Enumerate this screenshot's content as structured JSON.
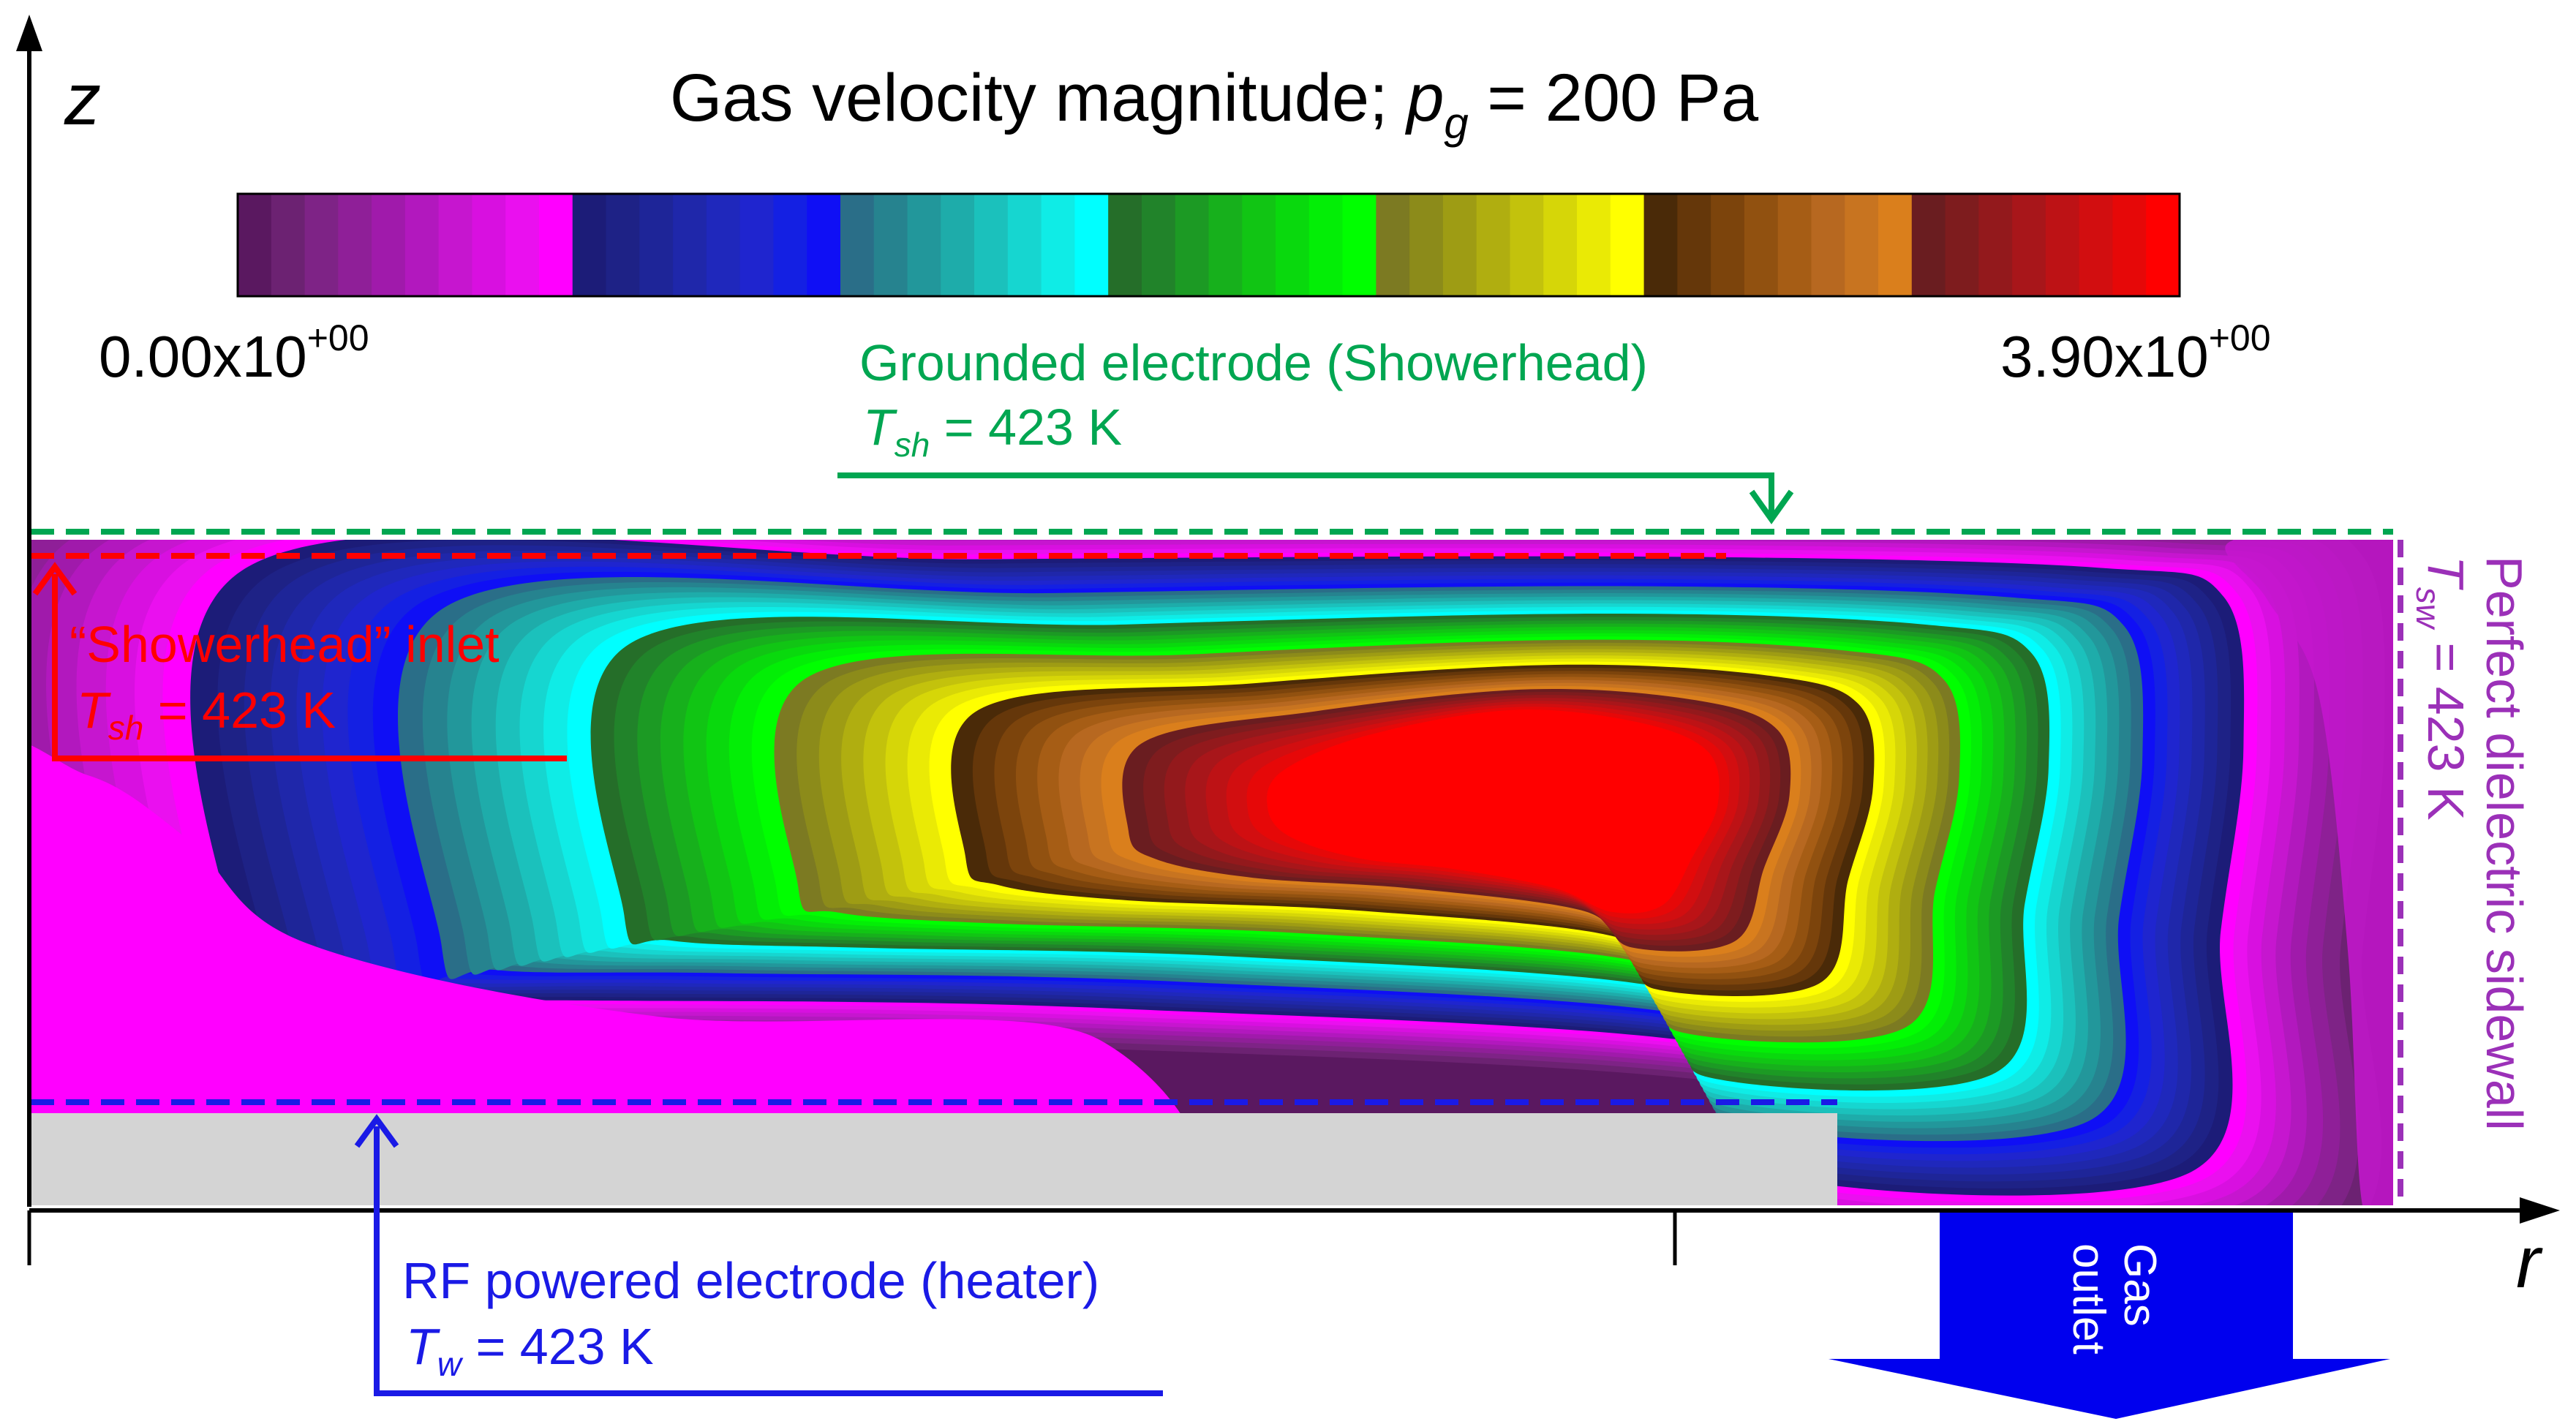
{
  "title": {
    "text": "Gas velocity magnitude; ",
    "sym": "p",
    "sub": "g",
    "rest": " = 200 Pa"
  },
  "colorbar": {
    "min_label": {
      "base": "0.00x10",
      "exp": "+00"
    },
    "max_label": {
      "base": "3.90x10",
      "exp": "+00"
    },
    "min": 0.0,
    "max": 3.9,
    "colors": [
      "#5a1860",
      "#6c2272",
      "#7e2386",
      "#8f1f98",
      "#a01aab",
      "#b218be",
      "#c616cf",
      "#d810e0",
      "#ea10ef",
      "#ff00ff",
      "#1c1c78",
      "#1e2286",
      "#1e2598",
      "#1f27aa",
      "#1f28bc",
      "#1f25cf",
      "#1420e3",
      "#0f0ff5",
      "#2a6e88",
      "#26838f",
      "#22979b",
      "#1eacaa",
      "#1bc1bc",
      "#16d6d0",
      "#0fece6",
      "#00ffff",
      "#256e29",
      "#21832a",
      "#1c9a24",
      "#17b01c",
      "#11c514",
      "#09d90d",
      "#03ee06",
      "#00ff00",
      "#7c7a22",
      "#8c8b1a",
      "#9e9c14",
      "#b0ae10",
      "#c3c20c",
      "#d6d608",
      "#eaea05",
      "#ffff00",
      "#4a2a08",
      "#65370a",
      "#7c440c",
      "#915110",
      "#a65d15",
      "#b76820",
      "#c87420",
      "#da7f1c",
      "#6a1d20",
      "#7e1c1e",
      "#93191c",
      "#a8161a",
      "#bd1215",
      "#d20e10",
      "#e60808",
      "#ff0000"
    ]
  },
  "axes": {
    "z": "z",
    "r": "r"
  },
  "labels": {
    "grounded_title": "Grounded electrode (Showerhead)",
    "grounded_t_sym": "T",
    "grounded_t_sub": "sh",
    "grounded_t_val": " = 423 K",
    "inlet_title": "“Showerhead” inlet",
    "inlet_t_sym": "T",
    "inlet_t_sub": "sh",
    "inlet_t_val": " = 423 K",
    "rf_title": "RF powered electrode (heater)",
    "rf_t_sym": "T",
    "rf_t_sub": "w",
    "rf_t_val": " = 423 K",
    "sidewall_title": "Perfect dielectric sidewall",
    "sidewall_t_sym": "T",
    "sidewall_t_sub": "sw",
    "sidewall_t_val": " = 423 K",
    "outlet_line1": "Gas",
    "outlet_line2": "outlet"
  },
  "style": {
    "green": "#00a651",
    "red": "#ff0000",
    "blue": "#1a1ae6",
    "purple": "#9b30b8",
    "outlet_blue": "#0000ee",
    "electrode_gray": "#d4d4d4"
  }
}
